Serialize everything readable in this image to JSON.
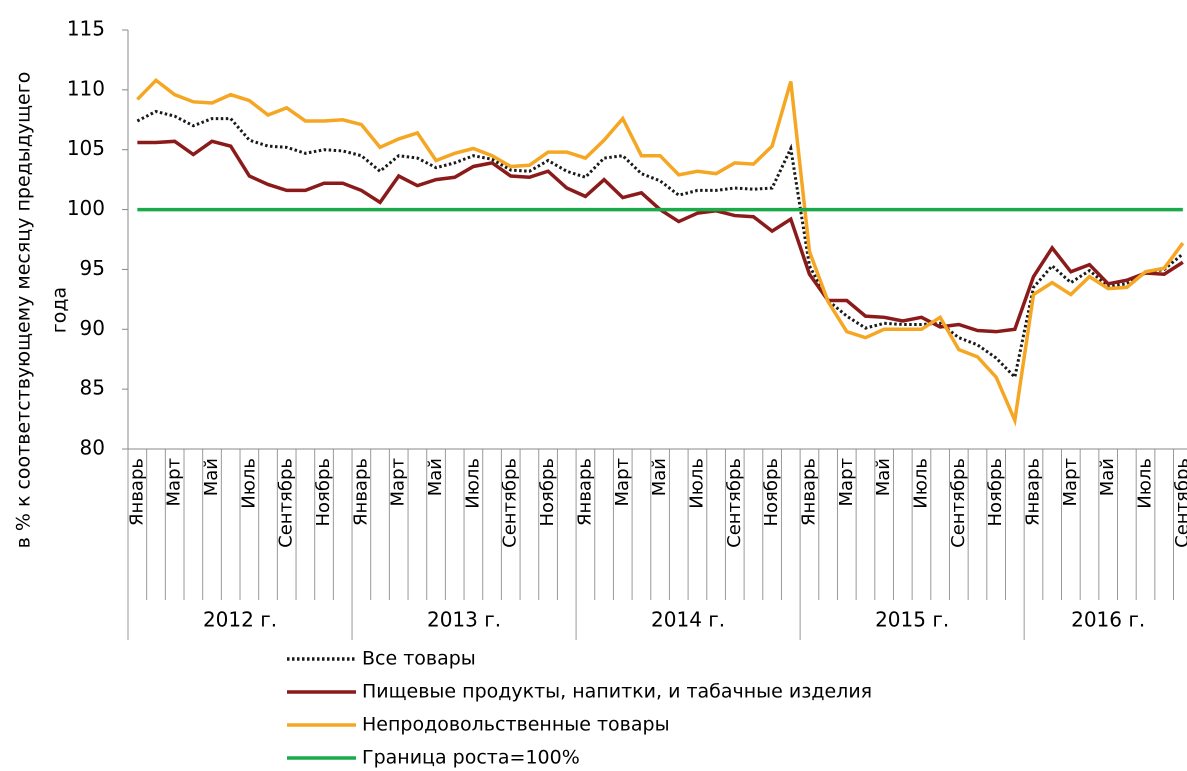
{
  "chart_data": {
    "type": "line",
    "y_label": [
      "в % к соответствующему месяцу предыдущего",
      "года"
    ],
    "category_groups": [
      {
        "label": "2012 г.",
        "categories": [
          "Январь",
          null,
          "Март",
          null,
          "Май",
          null,
          "Июль",
          null,
          "Сентябрь",
          null,
          "Ноябрь",
          null
        ]
      },
      {
        "label": "2013 г.",
        "categories": [
          "Январь",
          null,
          "Март",
          null,
          "Май",
          null,
          "Июль",
          null,
          "Сентябрь",
          null,
          "Ноябрь",
          null
        ]
      },
      {
        "label": "2014 г.",
        "categories": [
          "Январь",
          null,
          "Март",
          null,
          "Май",
          null,
          "Июль",
          null,
          "Сентябрь",
          null,
          "Ноябрь",
          null
        ]
      },
      {
        "label": "2015 г.",
        "categories": [
          "Январь",
          null,
          "Март",
          null,
          "Май",
          null,
          "Июль",
          null,
          "Сентябрь",
          null,
          "Ноябрь",
          null
        ]
      },
      {
        "label": "2016 г.",
        "categories": [
          "Январь",
          null,
          "Март",
          null,
          "Май",
          null,
          "Июль",
          null,
          "Сентябрь"
        ]
      }
    ],
    "ylim": [
      80,
      115
    ],
    "yticks": [
      80,
      85,
      90,
      95,
      100,
      105,
      110,
      115
    ],
    "series": [
      {
        "name": "Все товары",
        "color": "#1a1a1a",
        "dash": "dotted",
        "values": [
          107.4,
          108.2,
          107.8,
          107.0,
          107.6,
          107.6,
          105.8,
          105.3,
          105.2,
          104.7,
          105.0,
          104.9,
          104.5,
          103.2,
          104.5,
          104.3,
          103.5,
          103.9,
          104.5,
          104.2,
          103.3,
          103.2,
          104.1,
          103.2,
          102.7,
          104.3,
          104.5,
          103.0,
          102.4,
          101.2,
          101.6,
          101.6,
          101.8,
          101.7,
          101.8,
          105.1,
          95.3,
          92.4,
          91.1,
          90.1,
          90.5,
          90.4,
          90.4,
          90.5,
          89.3,
          88.7,
          87.6,
          86.0,
          93.5,
          95.3,
          93.9,
          94.9,
          93.6,
          93.8,
          94.7,
          95.0,
          96.3
        ]
      },
      {
        "name": "Пищевые продукты, напитки, и табачные изделия",
        "color": "#8b1a1a",
        "dash": "solid",
        "values": [
          105.6,
          105.6,
          105.7,
          104.6,
          105.7,
          105.3,
          102.8,
          102.1,
          101.6,
          101.6,
          102.2,
          102.2,
          101.6,
          100.6,
          102.8,
          102.0,
          102.5,
          102.7,
          103.6,
          103.9,
          102.8,
          102.7,
          103.2,
          101.8,
          101.1,
          102.5,
          101.0,
          101.4,
          100.0,
          99.0,
          99.7,
          99.9,
          99.5,
          99.4,
          98.2,
          99.2,
          94.6,
          92.4,
          92.4,
          91.1,
          91.0,
          90.7,
          91.0,
          90.2,
          90.4,
          89.9,
          89.8,
          90.0,
          94.4,
          96.8,
          94.8,
          95.4,
          93.8,
          94.1,
          94.7,
          94.6,
          95.6
        ]
      },
      {
        "name": "Непродовольственные товары",
        "color": "#f5a623",
        "dash": "solid",
        "values": [
          109.2,
          110.8,
          109.6,
          109.0,
          108.9,
          109.6,
          109.1,
          107.9,
          108.5,
          107.4,
          107.4,
          107.5,
          107.1,
          105.2,
          105.9,
          106.4,
          104.1,
          104.7,
          105.1,
          104.5,
          103.6,
          103.7,
          104.8,
          104.8,
          104.3,
          105.8,
          107.6,
          104.5,
          104.5,
          102.9,
          103.2,
          103.0,
          103.9,
          103.8,
          105.3,
          110.7,
          96.5,
          92.3,
          89.8,
          89.3,
          90.0,
          90.0,
          90.0,
          91.0,
          88.3,
          87.7,
          86.0,
          82.4,
          92.9,
          93.9,
          92.9,
          94.4,
          93.4,
          93.5,
          94.8,
          95.1,
          97.2
        ]
      },
      {
        "name": "Граница роста=100%",
        "color": "#1aaa4a",
        "dash": "solid",
        "values": [
          100,
          100,
          100,
          100,
          100,
          100,
          100,
          100,
          100,
          100,
          100,
          100,
          100,
          100,
          100,
          100,
          100,
          100,
          100,
          100,
          100,
          100,
          100,
          100,
          100,
          100,
          100,
          100,
          100,
          100,
          100,
          100,
          100,
          100,
          100,
          100,
          100,
          100,
          100,
          100,
          100,
          100,
          100,
          100,
          100,
          100,
          100,
          100,
          100,
          100,
          100,
          100,
          100,
          100,
          100,
          100,
          100
        ]
      }
    ]
  }
}
